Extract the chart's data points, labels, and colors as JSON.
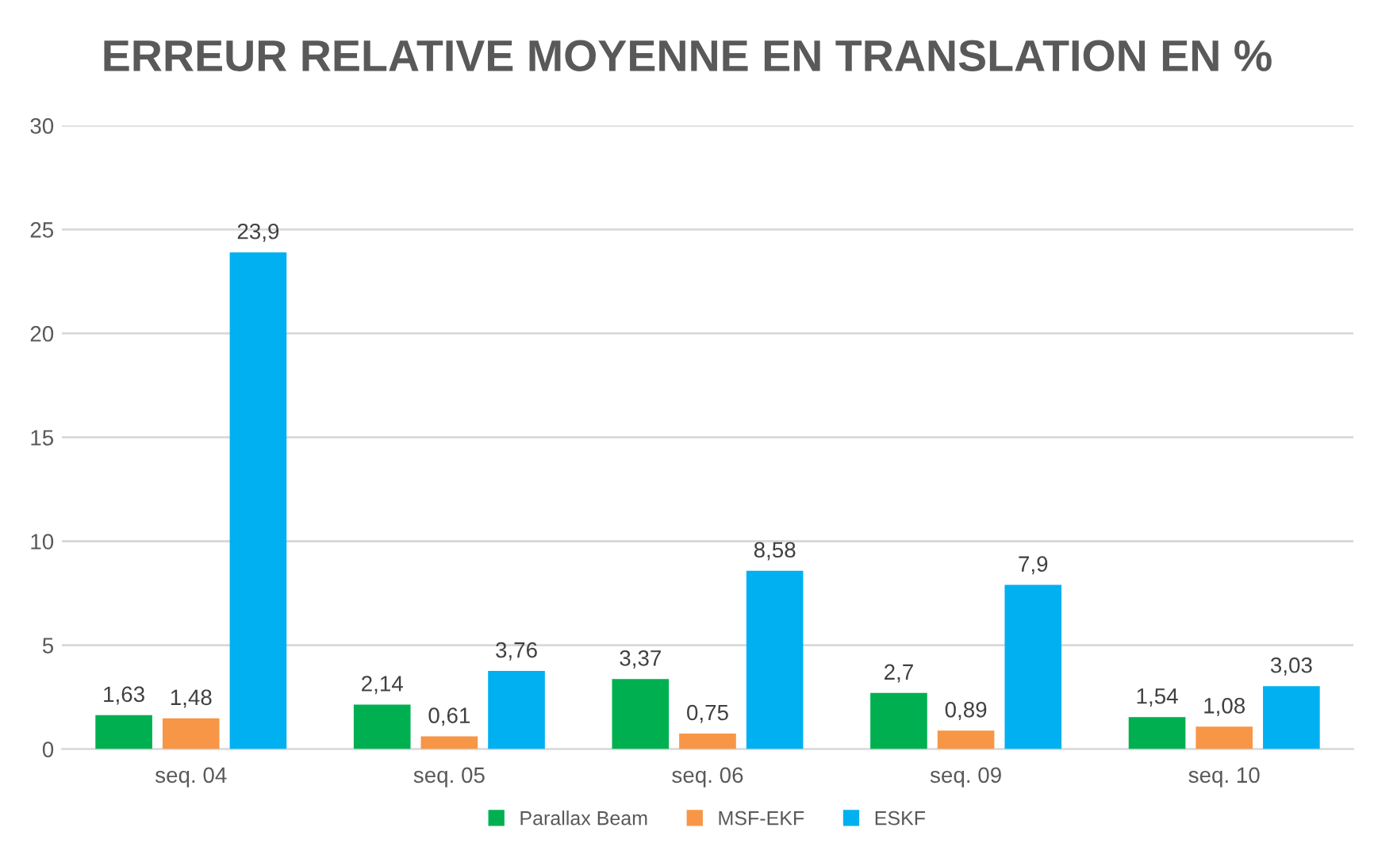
{
  "chart_data": {
    "type": "bar",
    "title": "ERREUR RELATIVE MOYENNE EN TRANSLATION EN %",
    "categories": [
      "seq. 04",
      "seq. 05",
      "seq. 06",
      "seq. 09",
      "seq. 10"
    ],
    "series": [
      {
        "name": "Parallax Beam",
        "color": "#00b050",
        "values": [
          1.63,
          2.14,
          3.37,
          2.7,
          1.54
        ],
        "value_labels": [
          "1,63",
          "2,14",
          "3,37",
          "2,7",
          "1,54"
        ]
      },
      {
        "name": "MSF-EKF",
        "color": "#f79646",
        "values": [
          1.48,
          0.61,
          0.75,
          0.89,
          1.08
        ],
        "value_labels": [
          "1,48",
          "0,61",
          "0,75",
          "0,89",
          "1,08"
        ]
      },
      {
        "name": "ESKF",
        "color": "#00b0f0",
        "values": [
          23.9,
          3.76,
          8.58,
          7.9,
          3.03
        ],
        "value_labels": [
          "23,9",
          "3,76",
          "8,58",
          "7,9",
          "3,03"
        ]
      }
    ],
    "ylim": [
      0,
      30
    ],
    "yticks": [
      0,
      5,
      10,
      15,
      20,
      25,
      30
    ],
    "grid": "y",
    "legend": "bottom"
  }
}
